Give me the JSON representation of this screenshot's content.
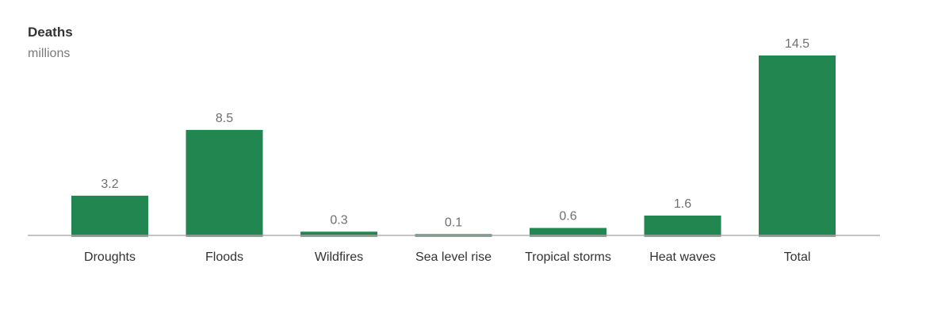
{
  "chart_data": {
    "type": "bar",
    "title": "Deaths",
    "subtitle": "millions",
    "categories": [
      "Droughts",
      "Floods",
      "Wildfires",
      "Sea level rise",
      "Tropical storms",
      "Heat waves",
      "Total"
    ],
    "values": [
      3.2,
      8.5,
      0.3,
      0.1,
      0.6,
      1.6,
      14.5
    ],
    "value_labels": [
      "3.2",
      "8.5",
      "0.3",
      "0.1",
      "0.6",
      "1.6",
      "14.5"
    ],
    "ylim": [
      0,
      14.5
    ],
    "grid": false,
    "colors": {
      "bar": "#228651",
      "bar_base": "#15512f",
      "axis": "#b0b0b0",
      "label": "#6f6f6f",
      "category": "#333333",
      "title": "#333333",
      "subtitle": "#7a7a7a"
    }
  }
}
